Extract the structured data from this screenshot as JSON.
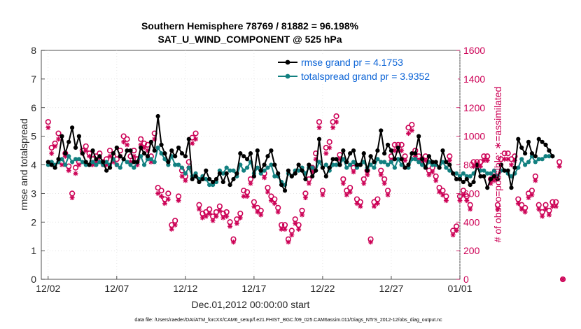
{
  "chart_data": {
    "type": "line",
    "title_line1": "Southern Hemisphere 78769 / 81882 = 96.198%",
    "title_line2": "SAT_U_WIND_COMPONENT @ 525 hPa",
    "xlabel": "Dec.01,2012 00:00:00 start",
    "ylabel_left": "rmse and totalspread",
    "ylabel_right": "# of obs: o=possible; ∗=assimilated",
    "footnote": "data file: /Users/raeder/DAI/ATM_forcXX/CAM6_setup/f.e21.FHIST_BGC.f09_025.CAM6assim.011/Diags_NTrS_2012-12/obs_diag_output.nc",
    "x_tick_labels": [
      "12/02",
      "12/07",
      "12/12",
      "12/17",
      "12/22",
      "12/27",
      "01/01"
    ],
    "x_tick_values": [
      1,
      6,
      11,
      16,
      21,
      26,
      31
    ],
    "xlim": [
      0.5,
      31
    ],
    "ylim_left": [
      0,
      8
    ],
    "ylim_right": [
      0,
      1600
    ],
    "y_left_ticks": [
      "0",
      "1",
      "2",
      "3",
      "4",
      "5",
      "6",
      "7",
      "8"
    ],
    "y_right_ticks": [
      "0",
      "200",
      "400",
      "600",
      "800",
      "1000",
      "1200",
      "1400",
      "1600"
    ],
    "x_step_days": 0.25,
    "series": [
      {
        "name": "rmse grand pr = 4.1753",
        "color": "#000000",
        "axis": "left",
        "values": [
          4.1,
          4.0,
          3.9,
          4.2,
          5.0,
          4.4,
          4.8,
          5.3,
          4.6,
          5.0,
          4.4,
          4.1,
          4.0,
          4.5,
          4.2,
          4.3,
          4.1,
          3.8,
          3.9,
          4.4,
          4.6,
          4.3,
          4.2,
          4.5,
          4.5,
          4.1,
          4.1,
          4.6,
          4.4,
          4.3,
          4.8,
          4.5,
          5.7,
          4.7,
          4.4,
          4.1,
          4.5,
          4.3,
          4.6,
          4.4,
          4.3,
          4.9,
          3.5,
          3.6,
          3.4,
          3.5,
          3.8,
          3.5,
          3.4,
          3.5,
          3.7,
          3.4,
          3.7,
          3.3,
          3.5,
          3.7,
          4.4,
          4.3,
          4.2,
          4.4,
          3.6,
          4.5,
          3.8,
          4.0,
          4.3,
          4.5,
          4.0,
          3.7,
          3.3,
          3.1,
          3.8,
          3.6,
          3.7,
          4.0,
          3.8,
          3.5,
          4.0,
          3.6,
          3.8,
          4.9,
          3.9,
          3.6,
          3.9,
          4.2,
          4.2,
          4.0,
          4.5,
          4.1,
          4.4,
          4.5,
          4.0,
          4.0,
          4.4,
          3.8,
          4.3,
          4.1,
          4.5,
          5.2,
          4.4,
          4.7,
          4.5,
          4.2,
          4.6,
          4.2,
          3.9,
          4.0,
          4.4,
          4.4,
          5.0,
          4.2,
          3.9,
          4.3,
          4.1,
          4.1,
          3.9,
          4.5,
          4.1,
          4.0,
          3.7,
          3.5,
          3.5,
          3.4,
          3.5,
          3.3,
          3.4,
          4.0,
          3.6,
          3.6,
          3.2,
          3.5,
          3.6,
          3.5,
          4.0,
          3.8,
          3.8,
          3.2,
          3.9,
          4.9,
          4.6,
          4.4,
          4.8,
          4.4,
          4.3,
          4.9,
          4.8,
          4.7,
          4.5,
          4.3
        ]
      },
      {
        "name": "totalspread grand pr = 3.9352",
        "color": "#128080",
        "axis": "left",
        "values": [
          4.0,
          4.1,
          4.0,
          4.1,
          4.2,
          4.0,
          4.3,
          4.1,
          4.2,
          4.2,
          4.1,
          4.0,
          4.0,
          4.1,
          4.0,
          4.1,
          4.0,
          4.1,
          4.0,
          4.2,
          4.0,
          3.9,
          4.2,
          4.1,
          4.0,
          3.9,
          4.1,
          4.3,
          4.0,
          4.2,
          4.2,
          4.1,
          4.6,
          4.4,
          4.2,
          4.0,
          4.3,
          4.0,
          4.0,
          3.9,
          3.7,
          3.9,
          3.6,
          3.7,
          3.5,
          3.6,
          3.5,
          3.3,
          3.3,
          3.4,
          3.8,
          3.7,
          3.9,
          3.8,
          3.8,
          3.6,
          4.0,
          3.8,
          3.9,
          4.1,
          3.7,
          3.9,
          3.7,
          3.8,
          3.9,
          4.0,
          3.6,
          3.6,
          3.4,
          3.3,
          3.7,
          3.6,
          3.8,
          3.8,
          3.9,
          3.7,
          3.9,
          3.9,
          3.8,
          4.1,
          3.9,
          4.0,
          3.8,
          4.0,
          4.0,
          4.0,
          4.2,
          3.9,
          4.0,
          4.1,
          3.9,
          4.0,
          4.1,
          3.9,
          4.0,
          3.9,
          4.2,
          4.1,
          4.1,
          4.0,
          4.1,
          3.9,
          4.2,
          4.0,
          3.9,
          3.9,
          4.2,
          4.2,
          4.1,
          4.0,
          3.9,
          4.1,
          4.0,
          4.0,
          3.9,
          4.1,
          3.9,
          3.8,
          3.7,
          3.7,
          3.6,
          3.7,
          3.6,
          3.6,
          3.7,
          3.9,
          3.8,
          3.8,
          3.7,
          3.7,
          3.8,
          3.6,
          3.8,
          3.8,
          3.7,
          3.6,
          3.7,
          3.9,
          4.2,
          4.0,
          4.1,
          4.3,
          4.1,
          4.2,
          4.2,
          4.3,
          4.3,
          4.3
        ]
      },
      {
        "name": "obs possible",
        "marker": "o",
        "color": "#cc0055",
        "axis": "right",
        "values": [
          1100,
          920,
          950,
          1020,
          820,
          880,
          790,
          600,
          780,
          820,
          900,
          930,
          880,
          840,
          860,
          880,
          820,
          840,
          900,
          860,
          840,
          900,
          1000,
          980,
          860,
          900,
          840,
          980,
          950,
          940,
          860,
          1020,
          640,
          620,
          560,
          600,
          380,
          410,
          580,
          760,
          720,
          820,
          990,
          1020,
          520,
          460,
          470,
          490,
          440,
          470,
          510,
          460,
          470,
          400,
          280,
          420,
          460,
          620,
          610,
          700,
          540,
          500,
          480,
          740,
          640,
          580,
          560,
          500,
          380,
          380,
          280,
          340,
          420,
          380,
          480,
          600,
          700,
          780,
          880,
          1100,
          620,
          920,
          960,
          1100,
          1140,
          870,
          700,
          620,
          640,
          780,
          560,
          540,
          700,
          760,
          280,
          540,
          560,
          760,
          700,
          620,
          860,
          940,
          940,
          940,
          860,
          1060,
          1080,
          900,
          860,
          840,
          860,
          760,
          780,
          720,
          640,
          620,
          580,
          860,
          340,
          370,
          580,
          620,
          580,
          520,
          820,
          820,
          820,
          860,
          860,
          700,
          720,
          520,
          840,
          880,
          880,
          840,
          860,
          560,
          520,
          500,
          600,
          620,
          720,
          520,
          470,
          520,
          480,
          540,
          540,
          820,
          0
        ]
      },
      {
        "name": "obs assimilated",
        "marker": "*",
        "color": "#cc0055",
        "axis": "right",
        "values": [
          1060,
          880,
          930,
          980,
          800,
          860,
          760,
          570,
          740,
          800,
          880,
          900,
          860,
          800,
          820,
          850,
          800,
          800,
          860,
          820,
          800,
          860,
          960,
          940,
          820,
          860,
          800,
          940,
          920,
          900,
          820,
          980,
          600,
          580,
          530,
          560,
          350,
          380,
          550,
          720,
          690,
          780,
          950,
          980,
          490,
          430,
          440,
          460,
          410,
          440,
          480,
          430,
          440,
          370,
          260,
          390,
          430,
          580,
          580,
          670,
          510,
          470,
          450,
          710,
          610,
          550,
          530,
          470,
          350,
          350,
          260,
          310,
          390,
          350,
          450,
          570,
          670,
          750,
          840,
          1060,
          590,
          880,
          920,
          1060,
          1100,
          840,
          670,
          590,
          610,
          750,
          530,
          510,
          670,
          730,
          260,
          510,
          530,
          730,
          670,
          590,
          830,
          900,
          900,
          900,
          830,
          1020,
          1040,
          860,
          830,
          810,
          830,
          730,
          750,
          690,
          610,
          590,
          550,
          830,
          310,
          340,
          550,
          590,
          550,
          490,
          790,
          790,
          790,
          830,
          830,
          670,
          690,
          490,
          800,
          840,
          840,
          800,
          830,
          530,
          490,
          470,
          570,
          590,
          690,
          490,
          440,
          490,
          450,
          510,
          510,
          790,
          0
        ]
      }
    ]
  }
}
